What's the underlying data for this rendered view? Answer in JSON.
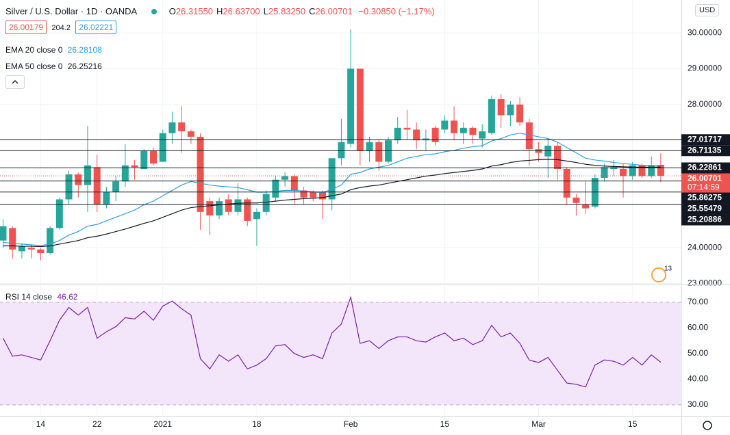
{
  "header": {
    "symbol": "Silver / U.S. Dollar · 1D · OANDA",
    "ohlc": [
      {
        "label": "O",
        "value": "26.31550"
      },
      {
        "label": "H",
        "value": "26.63700"
      },
      {
        "label": "L",
        "value": "25.83250"
      },
      {
        "label": "C",
        "value": "26.00701"
      }
    ],
    "change": "−0.30850 (−1.17%)",
    "bid": "26.00179",
    "spread": "204.2",
    "ask": "26.02221",
    "currency": "USD",
    "countdown": "07:14:59",
    "event_badge": "13"
  },
  "chart_data": [
    {
      "type": "candlestick",
      "categories": [
        null,
        null,
        null,
        null,
        "14",
        null,
        null,
        null,
        null,
        null,
        "22",
        null,
        null,
        null,
        null,
        null,
        null,
        "2021",
        null,
        null,
        null,
        null,
        null,
        null,
        null,
        null,
        null,
        "18",
        null,
        null,
        null,
        null,
        null,
        null,
        null,
        null,
        null,
        "Feb",
        null,
        null,
        null,
        null,
        null,
        null,
        null,
        null,
        null,
        "15",
        null,
        null,
        null,
        null,
        null,
        null,
        null,
        null,
        null,
        "Mar",
        null,
        null,
        null,
        null,
        null,
        null,
        null,
        null,
        null,
        "15",
        null,
        null,
        null
      ],
      "open": [
        24.2,
        24.55,
        23.9,
        24.0,
        23.95,
        23.85,
        24.55,
        25.35,
        26.05,
        25.75,
        26.25,
        25.2,
        25.55,
        25.85,
        26.3,
        26.2,
        26.7,
        26.4,
        27.2,
        27.5,
        27.25,
        27.1,
        25.3,
        24.9,
        25.35,
        25.0,
        25.35,
        24.8,
        25.0,
        25.4,
        25.9,
        26.0,
        25.6,
        25.55,
        25.55,
        25.35,
        26.5,
        26.9,
        29.0,
        26.7,
        26.95,
        26.4,
        27.0,
        27.35,
        27.3,
        27.0,
        27.35,
        27.3,
        27.55,
        27.2,
        27.35,
        27.05,
        27.2,
        28.15,
        27.7,
        28.0,
        27.5,
        26.75,
        26.55,
        26.85,
        26.2,
        25.4,
        25.2,
        25.15,
        25.95,
        26.2,
        26.2,
        26.0,
        26.3,
        26.0,
        26.3155
      ],
      "high": [
        24.8,
        24.6,
        24.1,
        24.1,
        24.0,
        24.6,
        25.4,
        26.15,
        26.1,
        27.4,
        26.6,
        25.7,
        26.0,
        26.9,
        26.45,
        26.75,
        26.8,
        27.3,
        27.8,
        27.95,
        27.3,
        27.2,
        25.4,
        25.4,
        25.5,
        25.8,
        25.4,
        25.1,
        25.6,
        26.0,
        26.1,
        26.05,
        25.7,
        25.6,
        25.6,
        26.5,
        27.6,
        30.1,
        29.0,
        27.1,
        27.0,
        27.1,
        27.65,
        27.85,
        27.5,
        27.3,
        27.4,
        27.7,
        27.95,
        27.5,
        27.4,
        27.45,
        28.25,
        28.3,
        28.1,
        28.2,
        27.6,
        26.95,
        27.05,
        26.95,
        26.25,
        25.5,
        25.85,
        26.05,
        26.35,
        26.45,
        26.35,
        26.4,
        26.35,
        26.55,
        26.637
      ],
      "low": [
        24.0,
        23.7,
        23.7,
        23.7,
        23.65,
        23.8,
        24.5,
        25.2,
        25.4,
        25.0,
        25.0,
        25.1,
        25.3,
        25.7,
        25.9,
        26.2,
        26.3,
        26.4,
        26.9,
        26.65,
        26.9,
        24.5,
        24.35,
        24.8,
        24.9,
        24.9,
        24.6,
        24.05,
        24.9,
        25.3,
        25.7,
        25.2,
        25.2,
        25.3,
        24.8,
        25.05,
        26.3,
        26.8,
        26.3,
        26.4,
        26.15,
        26.35,
        26.9,
        27.0,
        26.75,
        26.7,
        26.85,
        27.2,
        27.0,
        26.9,
        26.9,
        26.8,
        27.15,
        27.35,
        27.4,
        27.4,
        26.3,
        26.4,
        25.95,
        25.9,
        25.2,
        24.9,
        24.95,
        25.1,
        25.85,
        26.0,
        25.4,
        25.9,
        25.95,
        25.95,
        25.8325
      ],
      "close": [
        24.6,
        23.95,
        24.05,
        23.95,
        23.85,
        24.55,
        25.35,
        26.05,
        25.75,
        26.3,
        25.2,
        25.55,
        25.85,
        26.3,
        26.25,
        26.7,
        26.35,
        27.2,
        27.5,
        27.25,
        27.1,
        25.0,
        24.9,
        25.3,
        25.0,
        25.35,
        24.75,
        25.0,
        25.5,
        25.9,
        26.0,
        25.6,
        25.4,
        25.4,
        25.35,
        26.5,
        26.95,
        29.0,
        26.7,
        26.95,
        26.4,
        27.0,
        27.35,
        27.3,
        27.0,
        27.05,
        26.95,
        27.55,
        27.2,
        27.35,
        27.15,
        27.25,
        28.15,
        27.7,
        28.0,
        27.5,
        26.75,
        26.65,
        26.85,
        26.2,
        25.4,
        25.25,
        25.1,
        25.95,
        26.25,
        26.25,
        26.0,
        26.3,
        26.0,
        26.3,
        26.00701
      ],
      "up_color": "#26a69a",
      "down_color": "#ef5350",
      "series": [
        {
          "name": "EMA 20 close 0",
          "color": "#2e9fd8",
          "values": [
            24.15,
            24.12,
            24.1,
            24.08,
            24.06,
            24.1,
            24.2,
            24.35,
            24.45,
            24.6,
            24.65,
            24.75,
            24.85,
            24.95,
            25.05,
            25.2,
            25.3,
            25.45,
            25.6,
            25.75,
            25.85,
            25.8,
            25.75,
            25.72,
            25.7,
            25.68,
            25.62,
            25.55,
            25.55,
            25.57,
            25.6,
            25.6,
            25.58,
            25.56,
            25.54,
            25.63,
            25.75,
            26.05,
            26.1,
            26.2,
            26.25,
            26.3,
            26.4,
            26.5,
            26.55,
            26.6,
            26.62,
            26.68,
            26.72,
            26.78,
            26.82,
            26.85,
            26.98,
            27.05,
            27.15,
            27.2,
            27.15,
            27.1,
            27.05,
            26.95,
            26.8,
            26.65,
            26.5,
            26.45,
            26.42,
            26.38,
            26.35,
            26.33,
            26.3,
            26.3,
            26.28108
          ]
        },
        {
          "name": "EMA 50 close 0",
          "color": "#131722",
          "values": [
            24.05,
            24.05,
            24.04,
            24.04,
            24.03,
            24.05,
            24.1,
            24.15,
            24.2,
            24.28,
            24.32,
            24.38,
            24.45,
            24.52,
            24.6,
            24.68,
            24.75,
            24.85,
            24.95,
            25.05,
            25.12,
            25.15,
            25.17,
            25.2,
            25.22,
            25.24,
            25.25,
            25.25,
            25.27,
            25.3,
            25.33,
            25.35,
            25.37,
            25.38,
            25.4,
            25.45,
            25.5,
            25.62,
            25.68,
            25.72,
            25.75,
            25.8,
            25.85,
            25.9,
            25.95,
            26.0,
            26.03,
            26.07,
            26.1,
            26.13,
            26.16,
            26.2,
            26.28,
            26.32,
            26.38,
            26.42,
            26.44,
            26.46,
            26.47,
            26.46,
            26.42,
            26.38,
            26.33,
            26.3,
            26.28,
            26.27,
            26.26,
            26.25,
            26.25,
            26.25,
            26.25216
          ]
        }
      ],
      "hlines": [
        27.01717,
        26.71135,
        26.22861,
        25.86275,
        25.55479,
        25.20886
      ],
      "ylim": [
        22.99,
        30.92
      ],
      "yticks": [
        {
          "value": 23,
          "label": "23.00000"
        },
        {
          "value": 24,
          "label": "24.00000"
        },
        {
          "value": 28,
          "label": "28.00000"
        },
        {
          "value": 29,
          "label": "29.00000"
        },
        {
          "value": 30,
          "label": "30.00000"
        }
      ],
      "grid": true
    },
    {
      "type": "line",
      "title": "RSI 14 close",
      "color": "#7b1fa2",
      "values": [
        56,
        49,
        49.5,
        48.5,
        47.5,
        55,
        63,
        68,
        65,
        68,
        56,
        58.5,
        60.5,
        64,
        63.5,
        66.5,
        63,
        68.5,
        70.5,
        67.5,
        65,
        48,
        44,
        49.5,
        47,
        49.5,
        44,
        45.5,
        48,
        53,
        53.5,
        50,
        48.5,
        49.5,
        48,
        58,
        61.5,
        72,
        54,
        55,
        52,
        55,
        56.5,
        56.5,
        55,
        54.5,
        56.5,
        58,
        55,
        56,
        53.5,
        55,
        61,
        56.5,
        58,
        54,
        47.5,
        46.5,
        48.5,
        43.5,
        38.5,
        38,
        37,
        45.5,
        47.5,
        47,
        45.5,
        48.5,
        45.5,
        49.5,
        46.62
      ],
      "band": [
        30,
        70
      ],
      "band_color": "#f3e6fb",
      "ylim": [
        25.7,
        76.4
      ],
      "yticks": [
        {
          "value": 30,
          "label": "30.00"
        },
        {
          "value": 40,
          "label": "40.00"
        },
        {
          "value": 50,
          "label": "50.00"
        },
        {
          "value": 60,
          "label": "60.00"
        },
        {
          "value": 70,
          "label": "70.00"
        }
      ]
    }
  ]
}
